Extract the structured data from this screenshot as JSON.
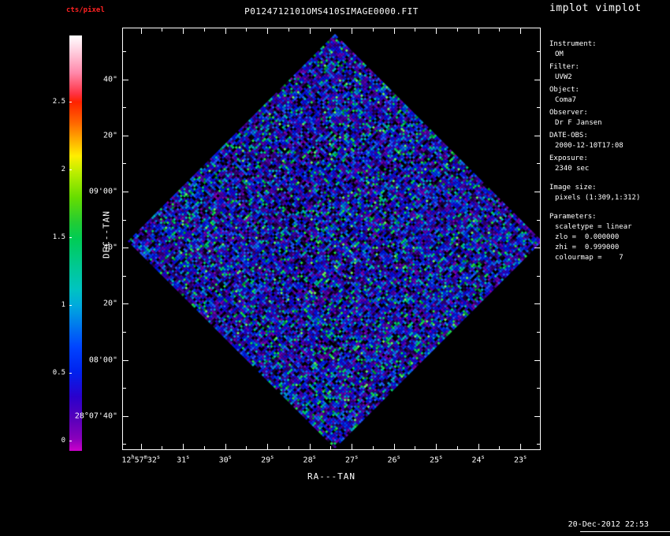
{
  "app": {
    "name": "implot vimplot",
    "timestamp": "20-Dec-2012 22:53"
  },
  "plot": {
    "title": "P0124712101OMS410SIMAGE0000.FIT",
    "xlabel": "RA---TAN",
    "ylabel": "DEC--TAN",
    "x_ticks": [
      "12h57m32s",
      "31s",
      "30s",
      "29s",
      "28s",
      "27s",
      "26s",
      "25s",
      "24s",
      "23s"
    ],
    "y_ticks": [
      "40\"",
      "20\"",
      "09'00\"",
      "40\"",
      "20\"",
      "08'00\"",
      "28°07'40\""
    ]
  },
  "colorbar": {
    "label": "cts/pixel",
    "label_color": "#ff2222",
    "ticks": [
      "2.5",
      "2",
      "1.5",
      "1",
      "0.5",
      "0"
    ]
  },
  "info": {
    "groups": [
      {
        "label": "Instrument:",
        "values": [
          "OM"
        ]
      },
      {
        "label": "Filter:",
        "values": [
          "UVW2"
        ]
      },
      {
        "label": "Object:",
        "values": [
          "Coma7"
        ]
      },
      {
        "label": "Observer:",
        "values": [
          "Dr F Jansen"
        ]
      },
      {
        "label": "DATE-OBS:",
        "values": [
          "2000-12-10T17:08"
        ]
      },
      {
        "label": "Exposure:",
        "values": [
          "2340 sec"
        ]
      },
      {
        "label": "Image size:",
        "values": [
          "pixels (1:309,1:312)"
        ],
        "gap": true
      },
      {
        "label": "Parameters:",
        "values": [
          "scaletype = linear",
          "zlo =  0.000000",
          "zhi =  0.999000",
          "colourmap =    7"
        ],
        "gap": true
      }
    ]
  },
  "colors": {
    "background": "#000000",
    "foreground": "#ffffff",
    "frame": "#ffffff"
  },
  "chart_data": {
    "type": "heatmap",
    "title": "P0124712101OMS410SIMAGE0000.FIT",
    "xlabel": "RA---TAN",
    "ylabel": "DEC--TAN",
    "x_tick_labels": [
      "12h57m32s",
      "31s",
      "30s",
      "29s",
      "28s",
      "27s",
      "26s",
      "25s",
      "24s",
      "23s"
    ],
    "y_tick_labels": [
      "40\"",
      "20\"",
      "09'00\"",
      "40\"",
      "20\"",
      "08'00\"",
      "28°07'40\""
    ],
    "colorbar": {
      "label": "cts/pixel",
      "tick_values": [
        2.5,
        2,
        1.5,
        1,
        0.5,
        0
      ],
      "range": [
        0,
        3
      ],
      "colormap": "rainbow (colourmap 7: magenta-purple-blue-cyan-green-yellow-orange-red-white)"
    },
    "image": {
      "shape": "square FITS image rotated 45 degrees (diamond) inside rectangular axes on black background",
      "pixels": "(1:309,1:312)",
      "content": "uniform random noise, predominantly blue and purple pixels with scattered cyan, green and black pixels (values near 0-1 cts/pixel)"
    },
    "grid": false,
    "legend": false
  }
}
